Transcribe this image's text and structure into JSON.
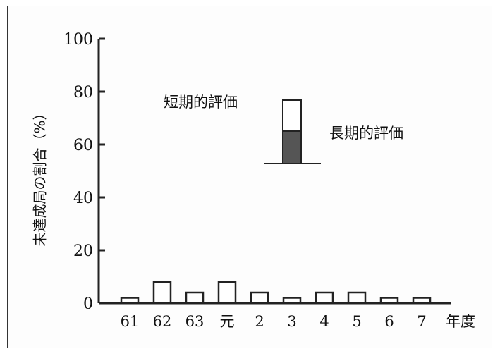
{
  "chart_data": {
    "type": "bar",
    "ylabel": "未達成局の割合（%）",
    "xlabel": "年度",
    "ylim": [
      0,
      100
    ],
    "yticks": [
      "0",
      "20",
      "40",
      "60",
      "80",
      "100"
    ],
    "categories": [
      "61",
      "62",
      "63",
      "元",
      "2",
      "3",
      "4",
      "5",
      "6",
      "7"
    ],
    "series": [
      {
        "name": "短期的評価",
        "values": [
          2,
          8,
          4,
          8,
          4,
          2,
          4,
          4,
          2,
          2
        ]
      },
      {
        "name": "長期的評価",
        "values": [
          0,
          0,
          0,
          0,
          0,
          0,
          0,
          0,
          0,
          0
        ]
      }
    ],
    "legend": {
      "short_label": "短期的評価",
      "long_label": "長期的評価",
      "placement": "top-center"
    },
    "colors": {
      "short": "#ffffff",
      "long": "#555555",
      "axis": "#222222"
    },
    "grid": false
  }
}
